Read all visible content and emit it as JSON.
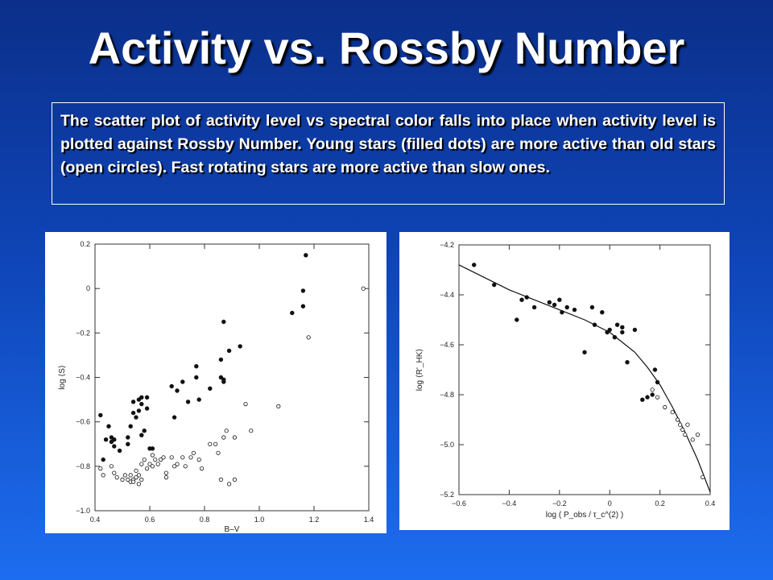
{
  "title": "Activity vs. Rossby Number",
  "caption": "The scatter plot of activity level vs spectral color falls into place when activity level is plotted against Rossby Number. Young stars (filled dots) are more active than old stars (open circles). Fast rotating stars are more active than slow ones.",
  "chart_data": [
    {
      "type": "scatter",
      "xlabel": "B–V",
      "ylabel": "log ⟨S⟩",
      "xlim": [
        0.4,
        1.4
      ],
      "ylim": [
        -1.0,
        0.2
      ],
      "xticks": [
        "0.4",
        "0.6",
        "0.8",
        "1.0",
        "1.2",
        "1.4"
      ],
      "yticks": [
        "0.2",
        "0",
        "−0.2",
        "−0.4",
        "−0.6",
        "−0.8",
        "−1.0"
      ],
      "series": [
        {
          "marker": "filled",
          "points": [
            [
              0.42,
              -0.57
            ],
            [
              0.43,
              -0.77
            ],
            [
              0.44,
              -0.68
            ],
            [
              0.45,
              -0.62
            ],
            [
              0.46,
              -0.69
            ],
            [
              0.46,
              -0.67
            ],
            [
              0.47,
              -0.71
            ],
            [
              0.47,
              -0.68
            ],
            [
              0.49,
              -0.73
            ],
            [
              0.52,
              -0.7
            ],
            [
              0.52,
              -0.67
            ],
            [
              0.53,
              -0.62
            ],
            [
              0.54,
              -0.51
            ],
            [
              0.54,
              -0.56
            ],
            [
              0.55,
              -0.58
            ],
            [
              0.56,
              -0.5
            ],
            [
              0.56,
              -0.55
            ],
            [
              0.57,
              -0.52
            ],
            [
              0.57,
              -0.49
            ],
            [
              0.57,
              -0.66
            ],
            [
              0.58,
              -0.64
            ],
            [
              0.59,
              -0.49
            ],
            [
              0.59,
              -0.54
            ],
            [
              0.6,
              -0.72
            ],
            [
              0.61,
              -0.72
            ],
            [
              0.68,
              -0.44
            ],
            [
              0.69,
              -0.58
            ],
            [
              0.7,
              -0.46
            ],
            [
              0.72,
              -0.42
            ],
            [
              0.74,
              -0.51
            ],
            [
              0.77,
              -0.4
            ],
            [
              0.77,
              -0.35
            ],
            [
              0.78,
              -0.5
            ],
            [
              0.82,
              -0.45
            ],
            [
              0.86,
              -0.4
            ],
            [
              0.86,
              -0.32
            ],
            [
              0.87,
              -0.42
            ],
            [
              0.87,
              -0.41
            ],
            [
              0.87,
              -0.15
            ],
            [
              0.89,
              -0.28
            ],
            [
              0.93,
              -0.26
            ],
            [
              1.12,
              -0.11
            ],
            [
              1.16,
              -0.08
            ],
            [
              1.16,
              -0.01
            ],
            [
              1.17,
              0.15
            ]
          ]
        },
        {
          "marker": "open",
          "points": [
            [
              0.42,
              -0.81
            ],
            [
              0.43,
              -0.84
            ],
            [
              0.46,
              -0.8
            ],
            [
              0.47,
              -0.83
            ],
            [
              0.48,
              -0.85
            ],
            [
              0.5,
              -0.86
            ],
            [
              0.51,
              -0.84
            ],
            [
              0.52,
              -0.86
            ],
            [
              0.53,
              -0.87
            ],
            [
              0.53,
              -0.84
            ],
            [
              0.54,
              -0.86
            ],
            [
              0.54,
              -0.87
            ],
            [
              0.55,
              -0.82
            ],
            [
              0.55,
              -0.85
            ],
            [
              0.56,
              -0.88
            ],
            [
              0.56,
              -0.84
            ],
            [
              0.57,
              -0.86
            ],
            [
              0.57,
              -0.79
            ],
            [
              0.58,
              -0.77
            ],
            [
              0.59,
              -0.81
            ],
            [
              0.6,
              -0.79
            ],
            [
              0.61,
              -0.75
            ],
            [
              0.61,
              -0.8
            ],
            [
              0.62,
              -0.77
            ],
            [
              0.63,
              -0.79
            ],
            [
              0.64,
              -0.77
            ],
            [
              0.65,
              -0.76
            ],
            [
              0.66,
              -0.85
            ],
            [
              0.66,
              -0.83
            ],
            [
              0.68,
              -0.76
            ],
            [
              0.69,
              -0.8
            ],
            [
              0.7,
              -0.79
            ],
            [
              0.72,
              -0.76
            ],
            [
              0.73,
              -0.8
            ],
            [
              0.75,
              -0.76
            ],
            [
              0.76,
              -0.74
            ],
            [
              0.78,
              -0.77
            ],
            [
              0.79,
              -0.81
            ],
            [
              0.82,
              -0.7
            ],
            [
              0.84,
              -0.7
            ],
            [
              0.85,
              -0.74
            ],
            [
              0.86,
              -0.86
            ],
            [
              0.87,
              -0.67
            ],
            [
              0.88,
              -0.64
            ],
            [
              0.89,
              -0.88
            ],
            [
              0.91,
              -0.86
            ],
            [
              0.91,
              -0.67
            ],
            [
              0.95,
              -0.52
            ],
            [
              0.97,
              -0.64
            ],
            [
              1.07,
              -0.53
            ],
            [
              1.18,
              -0.22
            ],
            [
              1.38,
              0.0
            ]
          ]
        }
      ]
    },
    {
      "type": "scatter",
      "xlabel": "log ( P_obs / τ_c^(2) )",
      "ylabel": "log ⟨R'_HK⟩",
      "xlim": [
        -0.6,
        0.4
      ],
      "ylim": [
        -5.2,
        -4.2
      ],
      "xticks": [
        "−0.6",
        "−0.4",
        "−0.2",
        "0",
        "0.2",
        "0.4"
      ],
      "yticks": [
        "−4.2",
        "−4.4",
        "−4.6",
        "−4.8",
        "−5.0",
        "−5.2"
      ],
      "fit_curve": [
        [
          -0.6,
          -4.28
        ],
        [
          -0.5,
          -4.33
        ],
        [
          -0.4,
          -4.38
        ],
        [
          -0.3,
          -4.42
        ],
        [
          -0.2,
          -4.46
        ],
        [
          -0.1,
          -4.5
        ],
        [
          0.0,
          -4.55
        ],
        [
          0.05,
          -4.59
        ],
        [
          0.1,
          -4.63
        ],
        [
          0.15,
          -4.69
        ],
        [
          0.2,
          -4.76
        ],
        [
          0.25,
          -4.85
        ],
        [
          0.3,
          -4.95
        ],
        [
          0.35,
          -5.06
        ],
        [
          0.4,
          -5.19
        ]
      ],
      "series": [
        {
          "marker": "filled",
          "points": [
            [
              -0.54,
              -4.28
            ],
            [
              -0.46,
              -4.36
            ],
            [
              -0.37,
              -4.5
            ],
            [
              -0.35,
              -4.42
            ],
            [
              -0.33,
              -4.41
            ],
            [
              -0.3,
              -4.45
            ],
            [
              -0.24,
              -4.43
            ],
            [
              -0.22,
              -4.44
            ],
            [
              -0.2,
              -4.42
            ],
            [
              -0.19,
              -4.47
            ],
            [
              -0.17,
              -4.45
            ],
            [
              -0.14,
              -4.46
            ],
            [
              -0.1,
              -4.63
            ],
            [
              -0.07,
              -4.45
            ],
            [
              -0.06,
              -4.52
            ],
            [
              -0.03,
              -4.47
            ],
            [
              -0.01,
              -4.55
            ],
            [
              0.0,
              -4.54
            ],
            [
              0.02,
              -4.57
            ],
            [
              0.03,
              -4.52
            ],
            [
              0.05,
              -4.55
            ],
            [
              0.05,
              -4.53
            ],
            [
              0.07,
              -4.67
            ],
            [
              0.1,
              -4.54
            ],
            [
              0.13,
              -4.82
            ],
            [
              0.15,
              -4.81
            ],
            [
              0.17,
              -4.8
            ],
            [
              0.18,
              -4.7
            ],
            [
              0.19,
              -4.75
            ]
          ]
        },
        {
          "marker": "open",
          "points": [
            [
              0.17,
              -4.78
            ],
            [
              0.19,
              -4.81
            ],
            [
              0.22,
              -4.85
            ],
            [
              0.25,
              -4.87
            ],
            [
              0.27,
              -4.9
            ],
            [
              0.28,
              -4.92
            ],
            [
              0.29,
              -4.94
            ],
            [
              0.3,
              -4.96
            ],
            [
              0.31,
              -4.92
            ],
            [
              0.33,
              -4.98
            ],
            [
              0.35,
              -4.96
            ],
            [
              0.37,
              -5.13
            ]
          ]
        }
      ]
    }
  ]
}
